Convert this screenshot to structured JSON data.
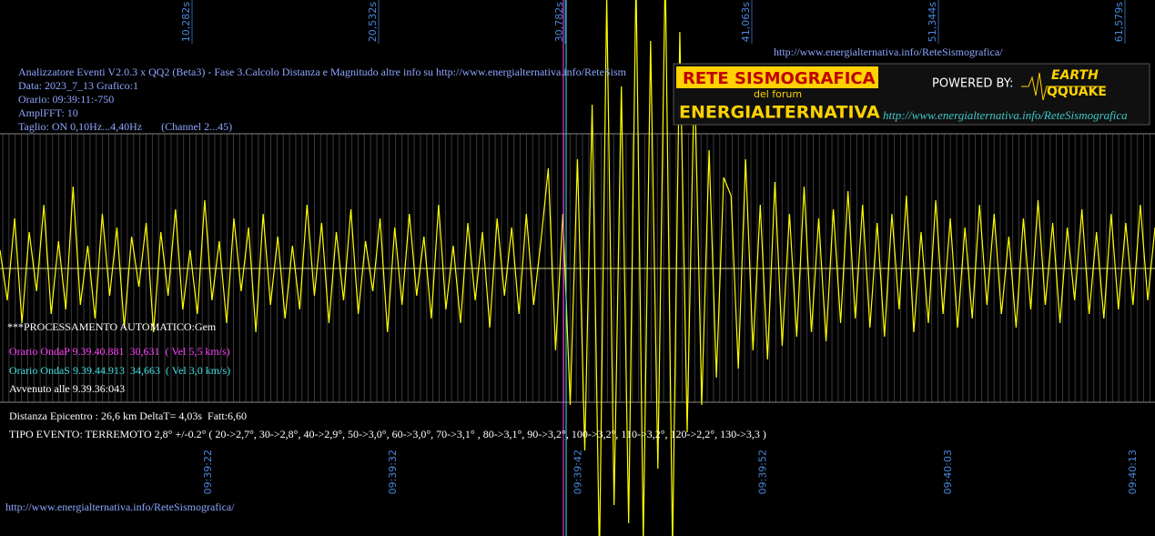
{
  "top_url": "http://www.energialternativa.info/ReteSismografica/",
  "header": [
    "Analizzatore Eventi V2.0.3 x QQ2 (Beta3) - Fase 3.Calcolo Distanza e Magnitudo altre info su http://www.energialternativa.info/ReteSism",
    "Data: 2023_7_13 Grafico:1",
    "Orario: 09:39:11:-750",
    "AmplFFT: 10",
    "Taglio: ON 0,10Hz...4,40Hz       (Channel 2...45)"
  ],
  "logo": {
    "title": "RETE SISMOGRAFICA",
    "subtitle": "del forum",
    "name": "ENERGIALTERNATIVA",
    "powered": "POWERED BY:",
    "earth": "EARTH",
    "quake": "QQUAKE",
    "url": "http://www.energialternativa.info/ReteSismografica"
  },
  "top_axis": [
    "10,282s",
    "20,532s",
    "30,782s",
    "41,063s",
    "51,344s",
    "61,579s"
  ],
  "bottom_axis": [
    "09:39:22",
    "09:39:32",
    "09:39:42",
    "09:39:52",
    "09:40:03",
    "09:40:13"
  ],
  "analysis": {
    "status": "***PROCESSAMENTO AUTOMATICO:Gem",
    "p_wave": "Orario OndaP 9.39.40.881  30,631  ( Vel 5,5 km/s)",
    "s_wave": "Orario OndaS 9.39.44.913  34,663  ( Vel 3,0 km/s)",
    "occurred": "Avvenuto alle 9.39.36:043",
    "distance": "Distanza Epicentro : 26,6 km DeltaT= 4,03s  Fatt:6,60",
    "event_type": "TIPO EVENTO: TERREMOTO 2,8° +/-0.2° ( 20->2,7°, 30->2,8°, 40->2,9°, 50->3,0°, 60->3,0°, 70->3,1° , 80->3,1°, 90->3,2°, 100->3,2°, 110->3,2°, 120->2,2°, 130->3,3 )"
  },
  "bottom_url": "http://www.energialternativa.info/ReteSismografica/",
  "waveform": {
    "color": "#ffff00",
    "values": [
      20,
      -35,
      55,
      -60,
      40,
      -25,
      70,
      -50,
      30,
      -45,
      90,
      -40,
      25,
      -55,
      60,
      -30,
      45,
      -65,
      35,
      -20,
      50,
      -70,
      40,
      -30,
      65,
      -45,
      20,
      -50,
      75,
      -35,
      30,
      -60,
      55,
      -25,
      45,
      -70,
      60,
      -40,
      35,
      -55,
      25,
      -45,
      70,
      -30,
      50,
      -60,
      40,
      -35,
      65,
      -50,
      30,
      -25,
      55,
      -70,
      45,
      -40,
      60,
      -30,
      35,
      -55,
      70,
      -45,
      25,
      -60,
      50,
      -35,
      40,
      -65,
      55,
      -30,
      45,
      -50,
      60,
      -40,
      30,
      110,
      -90,
      60,
      -150,
      120,
      -200,
      180,
      -320,
      300,
      -260,
      200,
      -280,
      320,
      -300,
      250,
      -220,
      330,
      -310,
      260,
      -180,
      220,
      -150,
      130,
      -120,
      100,
      80,
      -110,
      120,
      -90,
      70,
      -100,
      95,
      -85,
      60,
      -75,
      90,
      -70,
      55,
      -80,
      65,
      -60,
      85,
      -55,
      70,
      -65,
      50,
      -75,
      60,
      -45,
      80,
      -70,
      40,
      -60,
      75,
      -50,
      55,
      -65,
      45,
      -55,
      70,
      -40,
      60,
      -50,
      35,
      -65,
      55,
      -45,
      75,
      -40,
      50,
      -60,
      45,
      -35,
      65,
      -50,
      40,
      -55,
      60,
      -45,
      50,
      -40,
      70,
      -35,
      45
    ]
  }
}
